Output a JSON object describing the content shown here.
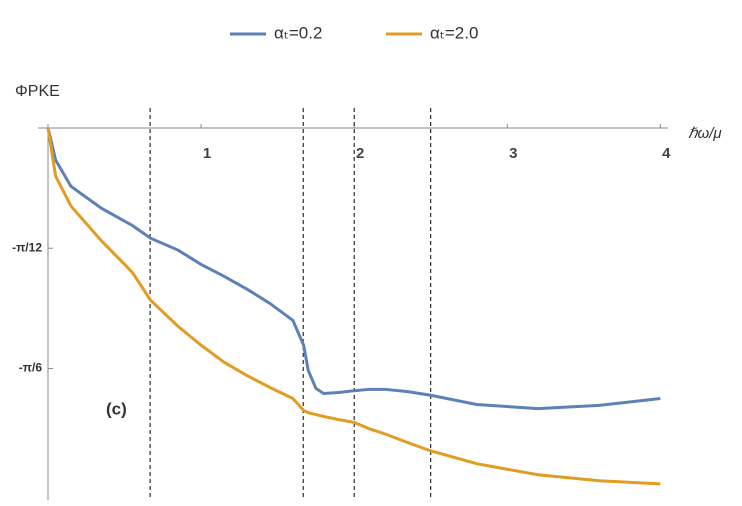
{
  "chart_data": {
    "type": "line",
    "x_label": "ℏω/μ",
    "y_label": "ΦPKE",
    "annotation": "(c)",
    "x": [
      0,
      0.05,
      0.15,
      0.35,
      0.55,
      0.67,
      0.85,
      1.0,
      1.15,
      1.3,
      1.45,
      1.6,
      1.67,
      1.7,
      1.75,
      1.8,
      1.9,
      2.0,
      2.1,
      2.2,
      2.35,
      2.5,
      2.8,
      3.2,
      3.6,
      4.0
    ],
    "series": [
      {
        "name": "αₜ=0.2",
        "color": "#5e81b5",
        "values": [
          0,
          -0.07,
          -0.127,
          -0.175,
          -0.212,
          -0.24,
          -0.266,
          -0.297,
          -0.323,
          -0.351,
          -0.382,
          -0.419,
          -0.473,
          -0.528,
          -0.567,
          -0.578,
          -0.576,
          -0.572,
          -0.569,
          -0.569,
          -0.574,
          -0.582,
          -0.602,
          -0.611,
          -0.604,
          -0.589
        ]
      },
      {
        "name": "αₜ=2.0",
        "color": "#e19c24",
        "values": [
          0,
          -0.105,
          -0.17,
          -0.246,
          -0.314,
          -0.375,
          -0.432,
          -0.473,
          -0.51,
          -0.539,
          -0.565,
          -0.589,
          -0.615,
          -0.62,
          -0.624,
          -0.628,
          -0.635,
          -0.641,
          -0.655,
          -0.666,
          -0.685,
          -0.703,
          -0.731,
          -0.755,
          -0.768,
          -0.775
        ]
      }
    ],
    "xlim": [
      0,
      4.05
    ],
    "ylim": [
      -0.81,
      0
    ],
    "xticks": [
      1,
      2,
      3,
      4
    ],
    "yticks": [
      {
        "value": -0.2618,
        "label": "-π/12"
      },
      {
        "value": -0.5236,
        "label": "-π/6"
      }
    ],
    "vlines": [
      0.667,
      1.667,
      2.0,
      2.5
    ]
  }
}
